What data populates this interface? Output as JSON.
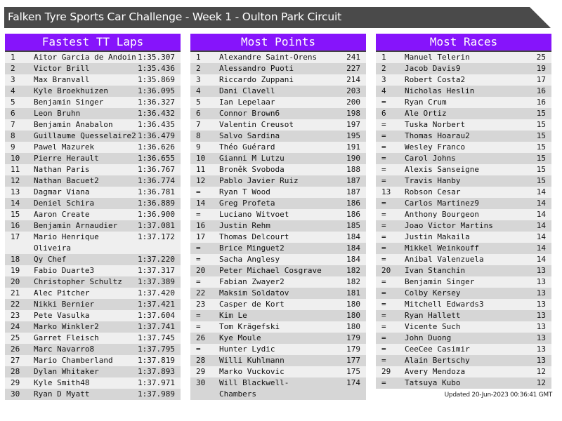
{
  "title": "Falken Tyre Sports Car Challenge - Week 1 - Oulton Park Circuit",
  "colors": {
    "header_bg": "#4a4a4a",
    "panel_header": "#8614fb",
    "row_light": "#efefef",
    "row_dark": "#d6d6d6"
  },
  "panels": [
    {
      "title": "Fastest TT Laps",
      "rows": [
        [
          "1",
          "Aitor Garcia de Andoin",
          "1:35.307"
        ],
        [
          "2",
          "Victor Brill",
          "1:35.436"
        ],
        [
          "3",
          "Max Branvall",
          "1:35.869"
        ],
        [
          "4",
          "Kyle Broekhuizen",
          "1:36.095"
        ],
        [
          "5",
          "Benjamin Singer",
          "1:36.327"
        ],
        [
          "6",
          "Leon Bruhn",
          "1:36.432"
        ],
        [
          "7",
          "Benjamin Anabalon",
          "1:36.435"
        ],
        [
          "8",
          "Guillaume Quesselaire2",
          "1:36.479"
        ],
        [
          "9",
          "Pawel Mazurek",
          "1:36.626"
        ],
        [
          "10",
          "Pierre Herault",
          "1:36.655"
        ],
        [
          "11",
          "Nathan Paris",
          "1:36.767"
        ],
        [
          "12",
          "Nathan Bacuet2",
          "1:36.774"
        ],
        [
          "13",
          "Dagmar Viana",
          "1:36.781"
        ],
        [
          "14",
          "Deniel Schira",
          "1:36.889"
        ],
        [
          "15",
          "Aaron Create",
          "1:36.900"
        ],
        [
          "16",
          "Benjamin Arnaudier",
          "1:37.081"
        ],
        [
          "17",
          "Mario Henrique Oliveira",
          "1:37.172"
        ],
        [
          "18",
          "Qy Chef",
          "1:37.220"
        ],
        [
          "19",
          "Fabio Duarte3",
          "1:37.317"
        ],
        [
          "20",
          "Christopher Schultz",
          "1:37.389"
        ],
        [
          "21",
          "Alec Pitcher",
          "1:37.420"
        ],
        [
          "22",
          "Nikki Bernier",
          "1:37.421"
        ],
        [
          "23",
          "Pete Vasulka",
          "1:37.604"
        ],
        [
          "24",
          "Marko Winkler2",
          "1:37.741"
        ],
        [
          "25",
          "Garret Fleisch",
          "1:37.745"
        ],
        [
          "26",
          "Marc Navarro8",
          "1:37.795"
        ],
        [
          "27",
          "Mario Chamberland",
          "1:37.819"
        ],
        [
          "28",
          "Dylan Whitaker",
          "1:37.893"
        ],
        [
          "29",
          "Kyle Smith48",
          "1:37.971"
        ],
        [
          "30",
          "Ryan D Myatt",
          "1:37.989"
        ]
      ]
    },
    {
      "title": "Most Points",
      "rows": [
        [
          "1",
          "Alexandre Saint-Orens",
          "241"
        ],
        [
          "2",
          "Alessandro Puoti",
          "227"
        ],
        [
          "3",
          "Riccardo Zuppani",
          "214"
        ],
        [
          "4",
          "Dani Clavell",
          "203"
        ],
        [
          "5",
          "Ian Lepelaar",
          "200"
        ],
        [
          "6",
          "Connor Brown6",
          "198"
        ],
        [
          "7",
          "Valentin Creusot",
          "197"
        ],
        [
          "8",
          "Salvo Sardina",
          "195"
        ],
        [
          "9",
          "Théo Guérard",
          "191"
        ],
        [
          "10",
          "Gianni M Lutzu",
          "190"
        ],
        [
          "11",
          "Broněk Svoboda",
          "188"
        ],
        [
          "12",
          "Pablo Javier Ruiz",
          "187"
        ],
        [
          "=",
          "Ryan T Wood",
          "187"
        ],
        [
          "14",
          "Greg Profeta",
          "186"
        ],
        [
          "=",
          "Luciano Witvoet",
          "186"
        ],
        [
          "16",
          "Justin Rehm",
          "185"
        ],
        [
          "17",
          "Thomas Delcourt",
          "184"
        ],
        [
          "=",
          "Brice Minguet2",
          "184"
        ],
        [
          "=",
          "Sacha Anglesy",
          "184"
        ],
        [
          "20",
          "Peter Michael Cosgrave",
          "182"
        ],
        [
          "=",
          "Fabian Zwayer2",
          "182"
        ],
        [
          "22",
          "Maksim Soldatov",
          "181"
        ],
        [
          "23",
          "Casper de Kort",
          "180"
        ],
        [
          "=",
          "Kim Le",
          "180"
        ],
        [
          "=",
          "Tom Krägefski",
          "180"
        ],
        [
          "26",
          "Kye Moule",
          "179"
        ],
        [
          "=",
          "Hunter Lydic",
          "179"
        ],
        [
          "28",
          "Willi Kuhlmann",
          "177"
        ],
        [
          "29",
          "Marko Vuckovic",
          "175"
        ],
        [
          "30",
          "Will Blackwell-Chambers",
          "174"
        ]
      ]
    },
    {
      "title": "Most Races",
      "rows": [
        [
          "1",
          "Manuel Telerin",
          "25"
        ],
        [
          "2",
          "Jacob Davis9",
          "19"
        ],
        [
          "3",
          "Robert Costa2",
          "17"
        ],
        [
          "4",
          "Nicholas Heslin",
          "16"
        ],
        [
          "=",
          "Ryan Crum",
          "16"
        ],
        [
          "6",
          "Ale Ortiz",
          "15"
        ],
        [
          "=",
          "Tuska Norbert",
          "15"
        ],
        [
          "=",
          "Thomas Hoarau2",
          "15"
        ],
        [
          "=",
          "Wesley Franco",
          "15"
        ],
        [
          "=",
          "Carol Johns",
          "15"
        ],
        [
          "=",
          "Alexis Sanseigne",
          "15"
        ],
        [
          "=",
          "Travis Hanby",
          "15"
        ],
        [
          "13",
          "Robson Cesar",
          "14"
        ],
        [
          "=",
          "Carlos Martinez9",
          "14"
        ],
        [
          "=",
          "Anthony Bourgeon",
          "14"
        ],
        [
          "=",
          "Joao Victor Martins",
          "14"
        ],
        [
          "=",
          "Justin Makaila",
          "14"
        ],
        [
          "=",
          "Mikkel Weinkouff",
          "14"
        ],
        [
          "=",
          "Anibal Valenzuela",
          "14"
        ],
        [
          "20",
          "Ivan Stanchin",
          "13"
        ],
        [
          "=",
          "Benjamin Singer",
          "13"
        ],
        [
          "=",
          "Colby Kersey",
          "13"
        ],
        [
          "=",
          "Mitchell Edwards3",
          "13"
        ],
        [
          "=",
          "Ryan Hallett",
          "13"
        ],
        [
          "=",
          "Vicente Such",
          "13"
        ],
        [
          "=",
          "John Duong",
          "13"
        ],
        [
          "=",
          "CeeCee Casimir",
          "13"
        ],
        [
          "=",
          "Alain Bertschy",
          "13"
        ],
        [
          "29",
          "Avery Mendoza",
          "12"
        ],
        [
          "=",
          "Tatsuya Kubo",
          "12"
        ]
      ]
    }
  ],
  "updated": "Updated 20-Jun-2023 00:36:41 GMT"
}
